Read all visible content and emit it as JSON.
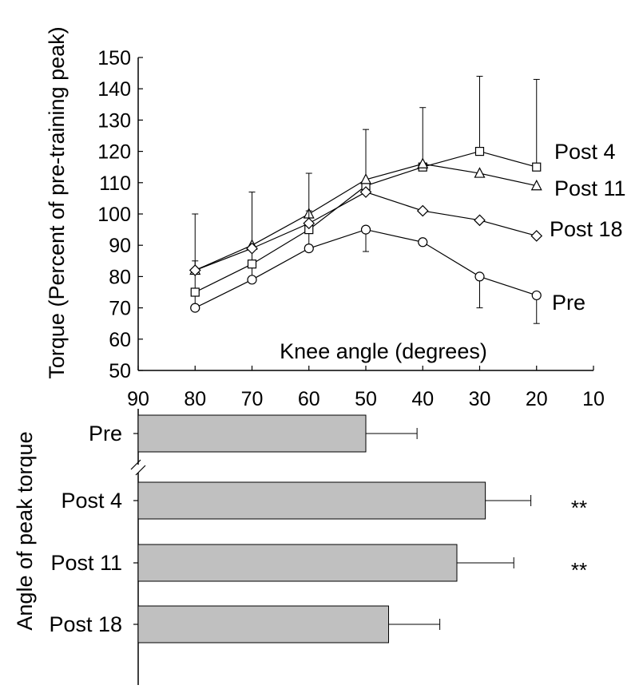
{
  "chart_data": [
    {
      "type": "line",
      "ylabel": "Torque (Percent of pre-training peak)",
      "xlabel": "Knee angle (degrees)",
      "ylim": [
        50,
        150
      ],
      "yticks": [
        "50",
        "60",
        "70",
        "80",
        "90",
        "100",
        "110",
        "120",
        "130",
        "140",
        "150"
      ],
      "xlim": [
        90,
        10
      ],
      "x": [
        80,
        70,
        60,
        50,
        40,
        30,
        20
      ],
      "series": [
        {
          "name": "Pre",
          "marker": "circle",
          "values": [
            70,
            79,
            89,
            95,
            91,
            80,
            74
          ],
          "error_up": [
            85,
            107,
            101,
            88,
            90,
            70,
            65
          ]
        },
        {
          "name": "Post 4",
          "marker": "square",
          "values": [
            75,
            84,
            95,
            109,
            115,
            120,
            115
          ],
          "error_up": [
            null,
            null,
            null,
            null,
            null,
            144,
            143
          ]
        },
        {
          "name": "Post 11",
          "marker": "triangle",
          "values": [
            82,
            90,
            100,
            111,
            116,
            113,
            109
          ],
          "error_up": [
            null,
            null,
            null,
            127,
            134,
            null,
            null
          ]
        },
        {
          "name": "Post 18",
          "marker": "diamond",
          "values": [
            82,
            89,
            97,
            107,
            101,
            98,
            93
          ],
          "error_up": [
            100,
            null,
            113,
            null,
            null,
            null,
            null
          ]
        }
      ]
    },
    {
      "type": "bar",
      "orientation": "horizontal",
      "ylabel": "Angle of peak torque",
      "xticks": [
        "90",
        "80",
        "70",
        "60",
        "50",
        "40",
        "30",
        "20",
        "10"
      ],
      "xlim": [
        90,
        10
      ],
      "axis_break_after": "Pre",
      "categories": [
        "Pre",
        "Post 4",
        "Post 11",
        "Post 18"
      ],
      "values": [
        50,
        29,
        34,
        46
      ],
      "error_end": [
        41,
        21,
        24,
        37
      ],
      "significance": [
        "",
        "**",
        "**",
        ""
      ],
      "bar_color": "#c0c0c0"
    }
  ]
}
